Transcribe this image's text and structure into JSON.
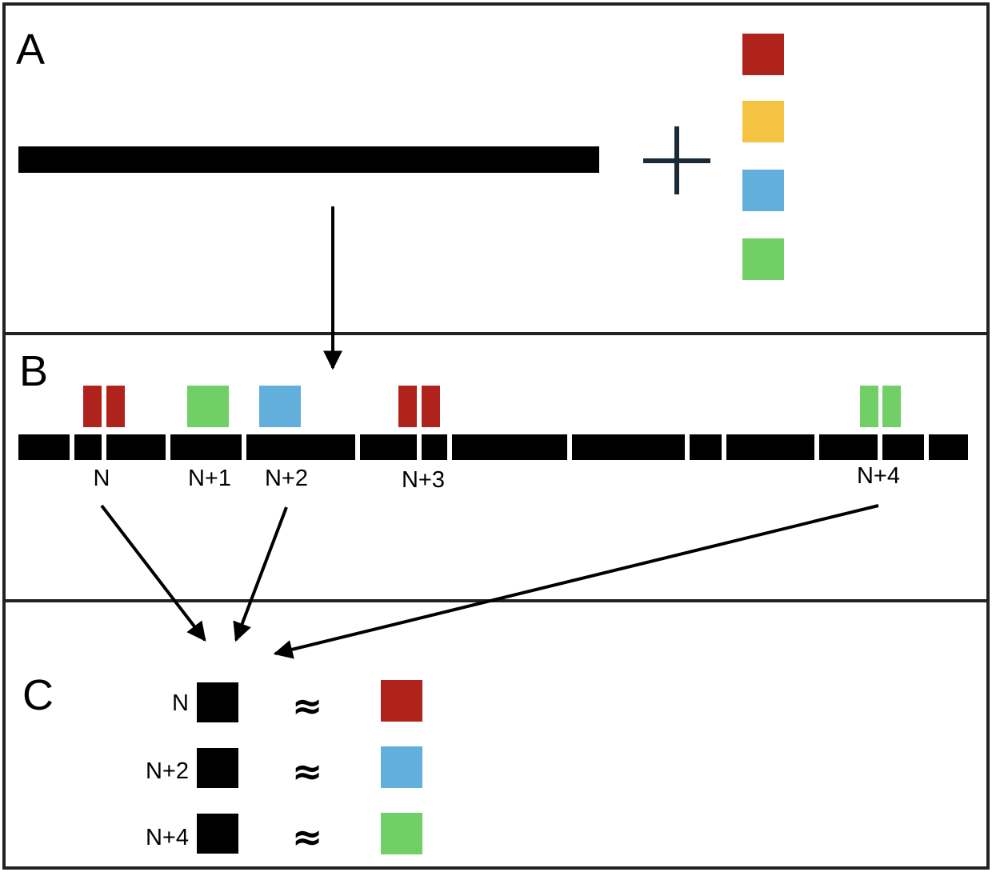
{
  "panels": {
    "a": {
      "letter": "A"
    },
    "b": {
      "letter": "B",
      "labels": [
        "N",
        "N+1",
        "N+2",
        "N+3",
        "N+4"
      ]
    },
    "c": {
      "letter": "C",
      "rows": [
        {
          "label": "N",
          "symbol": "≈",
          "color": "#b0231c"
        },
        {
          "label": "N+2",
          "symbol": "≈",
          "color": "#63afdc"
        },
        {
          "label": "N+4",
          "symbol": "≈",
          "color": "#70d066"
        }
      ]
    }
  },
  "colors": {
    "red": "#b0231c",
    "yellow": "#f5c342",
    "blue": "#63afdc",
    "green": "#70d066",
    "bar": "#000000",
    "plus": "#1a2a36",
    "border": "#222222"
  }
}
